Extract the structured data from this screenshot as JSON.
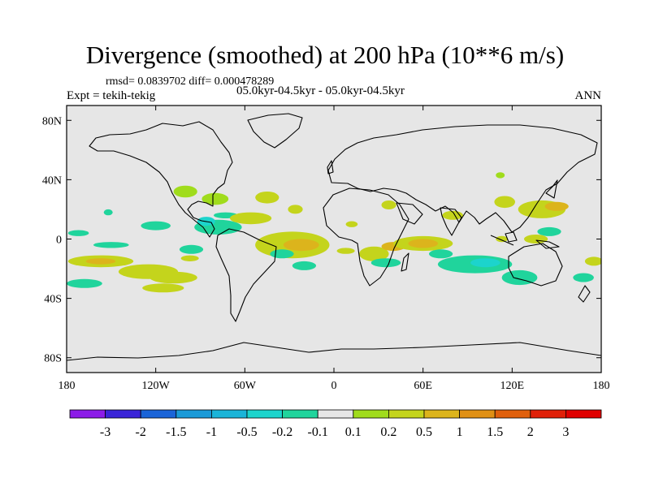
{
  "title": "Divergence (smoothed) at 200 hPa (10**6 m/s)",
  "stats": "rmsd= 0.0839702 diff= 0.000478289",
  "experiment": "Expt = tekih-tekig",
  "period": "05.0kyr-04.5kyr - 05.0kyr-04.5kyr",
  "season": "ANN",
  "chart_data": {
    "type": "heatmap",
    "title": "Divergence (smoothed) at 200 hPa (10**6 m/s)",
    "projection": "cylindrical equidistant",
    "xlim": [
      -180,
      180
    ],
    "ylim": [
      -90,
      90
    ],
    "lat_ticks": [
      {
        "value": 80,
        "label": "80N"
      },
      {
        "value": 40,
        "label": "40N"
      },
      {
        "value": 0,
        "label": "0"
      },
      {
        "value": -40,
        "label": "40S"
      },
      {
        "value": -80,
        "label": "80S"
      }
    ],
    "lon_ticks": [
      {
        "value": -180,
        "label": "180"
      },
      {
        "value": -120,
        "label": "120W"
      },
      {
        "value": -60,
        "label": "60W"
      },
      {
        "value": 0,
        "label": "0"
      },
      {
        "value": 60,
        "label": "60E"
      },
      {
        "value": 120,
        "label": "120E"
      },
      {
        "value": 180,
        "label": "180"
      }
    ],
    "colorbar": {
      "levels": [
        "-3",
        "-2",
        "-1.5",
        "-1",
        "-0.5",
        "-0.2",
        "-0.1",
        "0.1",
        "0.2",
        "0.5",
        "1",
        "1.5",
        "2",
        "3"
      ],
      "colors": [
        "#8c1ce8",
        "#3a24d8",
        "#1a64d8",
        "#1a9ad8",
        "#1ab4d8",
        "#1cd4cc",
        "#20d49c",
        "#e6e6e6",
        "#a0dc1c",
        "#c4d41c",
        "#dcb41c",
        "#e09014",
        "#e0600c",
        "#e02008",
        "#e00000"
      ]
    },
    "anomalies": [
      {
        "lon": -157,
        "lat": -15,
        "rx": 22,
        "ry": 4,
        "level": "0.2"
      },
      {
        "lon": -157,
        "lat": -15,
        "rx": 10,
        "ry": 2,
        "level": "0.5"
      },
      {
        "lon": -125,
        "lat": -22,
        "rx": 20,
        "ry": 5,
        "level": "0.2"
      },
      {
        "lon": -108,
        "lat": -26,
        "rx": 16,
        "ry": 4,
        "level": "0.2"
      },
      {
        "lon": -120,
        "lat": 9,
        "rx": 10,
        "ry": 3,
        "level": "-0.1"
      },
      {
        "lon": -150,
        "lat": -4,
        "rx": 12,
        "ry": 2,
        "level": "-0.1"
      },
      {
        "lon": -172,
        "lat": 4,
        "rx": 7,
        "ry": 2,
        "level": "-0.1"
      },
      {
        "lon": -168,
        "lat": -30,
        "rx": 12,
        "ry": 3,
        "level": "-0.1"
      },
      {
        "lon": -152,
        "lat": 18,
        "rx": 3,
        "ry": 2,
        "level": "-0.1"
      },
      {
        "lon": -115,
        "lat": -33,
        "rx": 14,
        "ry": 3,
        "level": "0.2"
      },
      {
        "lon": -78,
        "lat": 8,
        "rx": 16,
        "ry": 5,
        "level": "-0.1"
      },
      {
        "lon": -86,
        "lat": 12,
        "rx": 6,
        "ry": 3,
        "level": "-0.2"
      },
      {
        "lon": -100,
        "lat": 32,
        "rx": 8,
        "ry": 4,
        "level": "0.1"
      },
      {
        "lon": -80,
        "lat": 27,
        "rx": 9,
        "ry": 4,
        "level": "0.1"
      },
      {
        "lon": -73,
        "lat": 16,
        "rx": 8,
        "ry": 2,
        "level": "-0.1"
      },
      {
        "lon": -56,
        "lat": 14,
        "rx": 14,
        "ry": 4,
        "level": "0.2"
      },
      {
        "lon": -45,
        "lat": 28,
        "rx": 8,
        "ry": 4,
        "level": "0.2"
      },
      {
        "lon": -26,
        "lat": 20,
        "rx": 5,
        "ry": 3,
        "level": "0.2"
      },
      {
        "lon": -96,
        "lat": -7,
        "rx": 8,
        "ry": 3,
        "level": "-0.1"
      },
      {
        "lon": -97,
        "lat": -13,
        "rx": 6,
        "ry": 2,
        "level": "0.2"
      },
      {
        "lon": -28,
        "lat": -4,
        "rx": 25,
        "ry": 9,
        "level": "0.2"
      },
      {
        "lon": -22,
        "lat": -4,
        "rx": 12,
        "ry": 4,
        "level": "0.5"
      },
      {
        "lon": -35,
        "lat": -10,
        "rx": 8,
        "ry": 3,
        "level": "-0.1"
      },
      {
        "lon": -20,
        "lat": -18,
        "rx": 8,
        "ry": 3,
        "level": "-0.1"
      },
      {
        "lon": 8,
        "lat": -8,
        "rx": 6,
        "ry": 2,
        "level": "0.2"
      },
      {
        "lon": 12,
        "lat": 10,
        "rx": 4,
        "ry": 2,
        "level": "0.2"
      },
      {
        "lon": 37,
        "lat": 23,
        "rx": 5,
        "ry": 3,
        "level": "0.2"
      },
      {
        "lon": 27,
        "lat": -10,
        "rx": 10,
        "ry": 5,
        "level": "0.2"
      },
      {
        "lon": 40,
        "lat": -5,
        "rx": 8,
        "ry": 3,
        "level": "0.5"
      },
      {
        "lon": 60,
        "lat": -3,
        "rx": 20,
        "ry": 5,
        "level": "0.2"
      },
      {
        "lon": 60,
        "lat": -3,
        "rx": 10,
        "ry": 3,
        "level": "0.5"
      },
      {
        "lon": 35,
        "lat": -16,
        "rx": 10,
        "ry": 3,
        "level": "-0.1"
      },
      {
        "lon": 72,
        "lat": -10,
        "rx": 8,
        "ry": 3,
        "level": "-0.1"
      },
      {
        "lon": 95,
        "lat": -17,
        "rx": 25,
        "ry": 6,
        "level": "-0.1"
      },
      {
        "lon": 102,
        "lat": -16,
        "rx": 10,
        "ry": 3,
        "level": "-0.2"
      },
      {
        "lon": 125,
        "lat": -26,
        "rx": 12,
        "ry": 5,
        "level": "-0.1"
      },
      {
        "lon": 80,
        "lat": 16,
        "rx": 7,
        "ry": 3,
        "level": "0.2"
      },
      {
        "lon": 115,
        "lat": 25,
        "rx": 7,
        "ry": 4,
        "level": "0.2"
      },
      {
        "lon": 140,
        "lat": 20,
        "rx": 16,
        "ry": 6,
        "level": "0.2"
      },
      {
        "lon": 150,
        "lat": 22,
        "rx": 8,
        "ry": 3,
        "level": "0.5"
      },
      {
        "lon": 145,
        "lat": 5,
        "rx": 8,
        "ry": 3,
        "level": "-0.1"
      },
      {
        "lon": 113,
        "lat": 0,
        "rx": 4,
        "ry": 2,
        "level": "0.2"
      },
      {
        "lon": 136,
        "lat": 0,
        "rx": 8,
        "ry": 3,
        "level": "0.2"
      },
      {
        "lon": 175,
        "lat": -15,
        "rx": 6,
        "ry": 3,
        "level": "0.2"
      },
      {
        "lon": 168,
        "lat": -26,
        "rx": 7,
        "ry": 3,
        "level": "-0.1"
      },
      {
        "lon": 112,
        "lat": 43,
        "rx": 3,
        "ry": 2,
        "level": "0.1"
      }
    ]
  }
}
